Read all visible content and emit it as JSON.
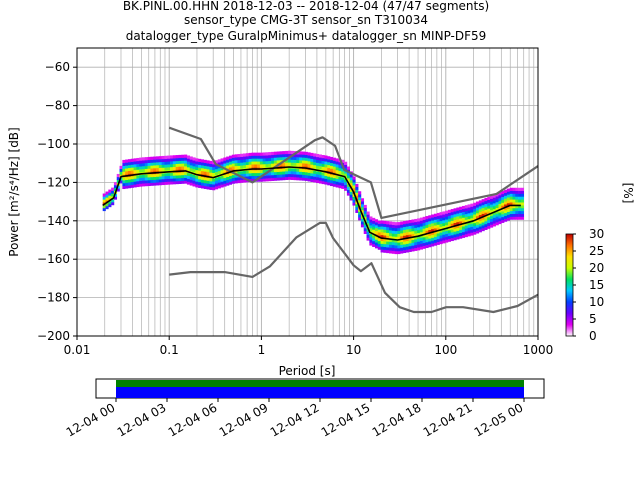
{
  "title_lines": [
    "BK.PINL.00.HHN   2018-12-03 -- 2018-12-04  (47/47 segments)",
    "sensor_type CMG-3T sensor_sn T310034",
    "datalogger_type GuralpMinimus+ datalogger_sn MINP-DF59"
  ],
  "chart_data": {
    "type": "heatmap",
    "xlabel": "Period [s]",
    "ylabel": "Power [m²/s⁴/Hz] [dB]",
    "x_scale": "log",
    "xlim": [
      0.01,
      1000
    ],
    "ylim": [
      -200,
      -50
    ],
    "x_tick_labels": [
      "0.01",
      "0.1",
      "1",
      "10",
      "100",
      "1000"
    ],
    "y_ticks": [
      -60,
      -80,
      -100,
      -120,
      -140,
      -160,
      -180,
      -200
    ],
    "colorbar": {
      "label": "[%]",
      "ticks": [
        0,
        5,
        10,
        15,
        20,
        25,
        30
      ],
      "range": [
        0,
        30
      ],
      "colors": [
        "#ffffff",
        "#e000f0",
        "#6a00ff",
        "#0040ff",
        "#00c8ff",
        "#00e060",
        "#c8ff00",
        "#ffe000",
        "#ff7000",
        "#c00000"
      ]
    },
    "series": [
      {
        "name": "High Noise Model",
        "color": "#666666",
        "x": [
          0.1,
          0.22,
          0.32,
          0.8,
          3.8,
          4.6,
          6.3,
          7.9,
          15.4,
          20,
          354.8,
          1000
        ],
        "y": [
          -91.5,
          -97.4,
          -110.5,
          -120,
          -98,
          -96.5,
          -101,
          -113.5,
          -120,
          -138.5,
          -126,
          -111.5
        ]
      },
      {
        "name": "Low Noise Model",
        "color": "#666666",
        "x": [
          0.1,
          0.17,
          0.4,
          0.8,
          1.24,
          2.4,
          4.3,
          5,
          6,
          10,
          12,
          15.6,
          21.9,
          31.6,
          45,
          70,
          101,
          154,
          328,
          600,
          1000
        ],
        "y": [
          -168,
          -166.7,
          -166.7,
          -169.2,
          -163.7,
          -148.6,
          -141.1,
          -141.1,
          -149,
          -163.2,
          -166.2,
          -162.1,
          -177.5,
          -185,
          -187.5,
          -187.5,
          -185,
          -185,
          -187.5,
          -184.4,
          -178.5
        ]
      },
      {
        "name": "mode",
        "color": "#000000",
        "x": [
          0.019,
          0.025,
          0.03,
          0.05,
          0.1,
          0.15,
          0.2,
          0.3,
          0.5,
          0.8,
          1,
          2,
          3,
          5,
          8,
          10,
          12,
          15,
          20,
          30,
          50,
          100,
          200,
          500,
          650
        ],
        "y": [
          -132,
          -128,
          -117,
          -115.5,
          -114.5,
          -114,
          -116,
          -117.5,
          -114,
          -113,
          -113,
          -112,
          -112.5,
          -114.5,
          -117,
          -125,
          -135,
          -146,
          -149,
          -150,
          -148,
          -144,
          -140,
          -132,
          -132
        ]
      }
    ],
    "histogram": {
      "comment_free": true,
      "period_range": [
        0.019,
        700
      ],
      "spread_db": 8,
      "max_percent": 30
    }
  },
  "time_axis": {
    "tick_labels": [
      "12-04 00",
      "12-04 03",
      "12-04 06",
      "12-04 09",
      "12-04 12",
      "12-04 15",
      "12-04 18",
      "12-04 21",
      "12-05 00"
    ],
    "data_bar_colors": [
      "#008000",
      "#0000ff"
    ],
    "coverage_fraction": 1.0
  }
}
